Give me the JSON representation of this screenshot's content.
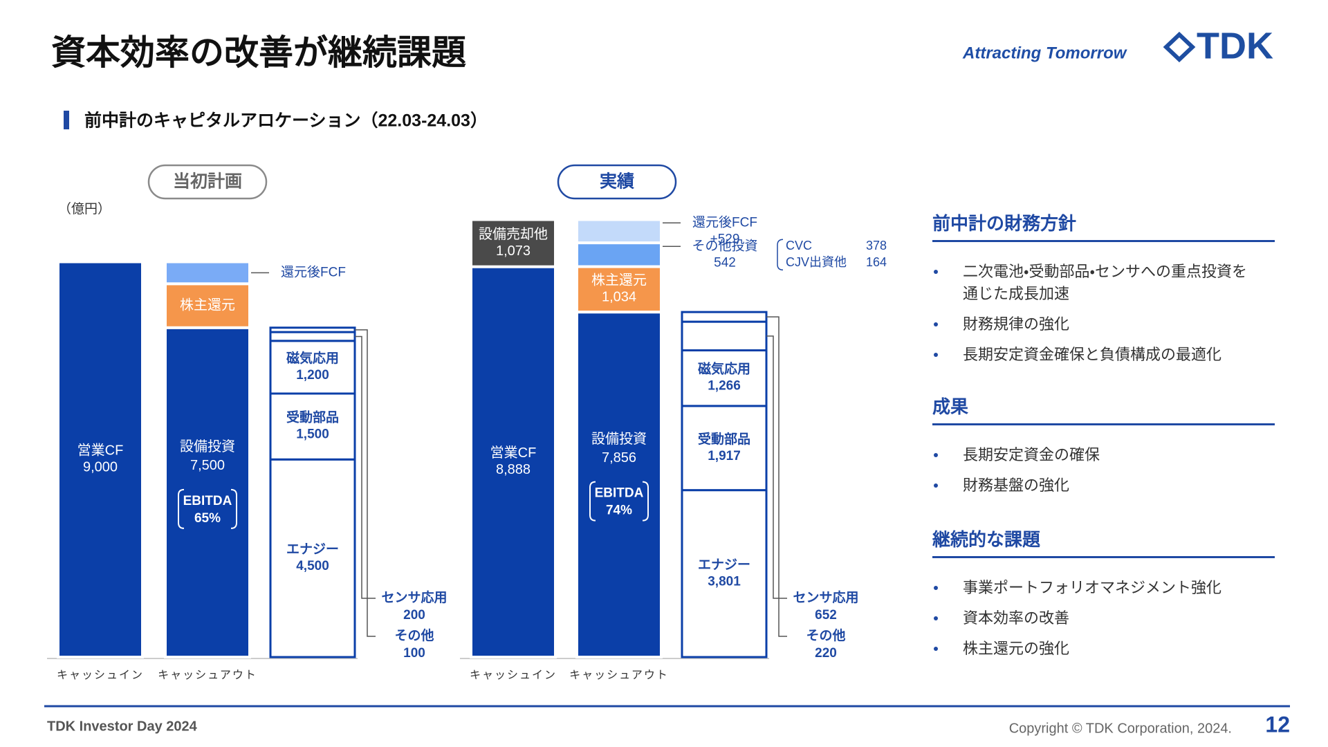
{
  "header": {
    "title": "資本効率の改善が継続課題",
    "tagline": "Attracting Tomorrow",
    "logo": "TDK"
  },
  "section_title": "前中計のキャピタルアロケーション（22.03-24.03）",
  "unit": "（億円）",
  "chart_data": [
    {
      "type": "bar",
      "title": "当初計画",
      "categories": [
        "キャッシュイン",
        "キャッシュアウト",
        null
      ],
      "columns": [
        [
          {
            "name": "営業CF",
            "value": 9000,
            "value_label": "9,000",
            "color": "#0b3fa8"
          }
        ],
        [
          {
            "name": "設備投資",
            "value": 7500,
            "value_label": "7,500",
            "color": "#0b3fa8"
          },
          {
            "name": "株主還元",
            "value": 1000,
            "color": "#f5964b"
          },
          {
            "name": "還元後FCF",
            "value": 500,
            "color": "#7aabf6"
          }
        ],
        [
          {
            "name": "エナジー",
            "value": 4500,
            "value_label": "4,500",
            "color": "#0b3fa8"
          },
          {
            "name": "受動部品",
            "value": 1500,
            "value_label": "1,500",
            "color": "#0b3fa8"
          },
          {
            "name": "磁気応用",
            "value": 1200,
            "value_label": "1,200",
            "color": "#0b3fa8"
          },
          {
            "name": "センサ応用",
            "value": 200,
            "value_label": "200",
            "color": "#0b3fa8"
          },
          {
            "name": "その他",
            "value": 100,
            "value_label": "100",
            "color": "#0b3fa8"
          }
        ]
      ],
      "ebitda": {
        "label": "EBITDA",
        "value": 65,
        "value_label": "65%"
      }
    },
    {
      "type": "bar",
      "title": "実績",
      "categories": [
        "キャッシュイン",
        "キャッシュアウト",
        null
      ],
      "columns": [
        [
          {
            "name": "営業CF",
            "value": 8888,
            "value_label": "8,888",
            "color": "#0b3fa8"
          },
          {
            "name": "設備売却他",
            "value": 1073,
            "value_label": "1,073",
            "color": "#4a4a4a"
          }
        ],
        [
          {
            "name": "設備投資",
            "value": 7856,
            "value_label": "7,856",
            "color": "#0b3fa8"
          },
          {
            "name": "株主還元",
            "value": 1034,
            "value_label": "1,034",
            "color": "#f5964b"
          },
          {
            "name": "その他投資",
            "value": 542,
            "value_label": "542",
            "color": "#6aa4f3",
            "parts": [
              {
                "name": "CVC",
                "value": 378
              },
              {
                "name": "CJV出資他",
                "value": 164
              }
            ]
          },
          {
            "name": "還元後FCF",
            "value": 529,
            "value_label": "+529",
            "color": "#c3dafa"
          }
        ],
        [
          {
            "name": "エナジー",
            "value": 3801,
            "value_label": "3,801",
            "color": "#0b3fa8"
          },
          {
            "name": "受動部品",
            "value": 1917,
            "value_label": "1,917",
            "color": "#0b3fa8"
          },
          {
            "name": "磁気応用",
            "value": 1266,
            "value_label": "1,266",
            "color": "#0b3fa8"
          },
          {
            "name": "センサ応用",
            "value": 652,
            "value_label": "652",
            "color": "#0b3fa8"
          },
          {
            "name": "その他",
            "value": 220,
            "value_label": "220",
            "color": "#0b3fa8"
          }
        ]
      ],
      "ebitda": {
        "label": "EBITDA",
        "value": 74,
        "value_label": "74%"
      }
    }
  ],
  "right_panel": [
    {
      "heading": "前中計の財務方針",
      "items": [
        "二次電池・受動部品・センサへの重点投資を通じた成長加速",
        "財務規律の強化",
        "長期安定資金確保と負債構成の最適化"
      ]
    },
    {
      "heading": "成果",
      "items": [
        "長期安定資金の確保",
        "財務基盤の強化"
      ]
    },
    {
      "heading": "継続的な課題",
      "items": [
        "事業ポートフォリオマネジメント強化",
        "資本効率の改善",
        "株主還元の強化"
      ]
    }
  ],
  "footer": {
    "event": "TDK Investor Day 2024",
    "copyright": "Copyright © TDK Corporation, 2024.",
    "page": 12
  }
}
